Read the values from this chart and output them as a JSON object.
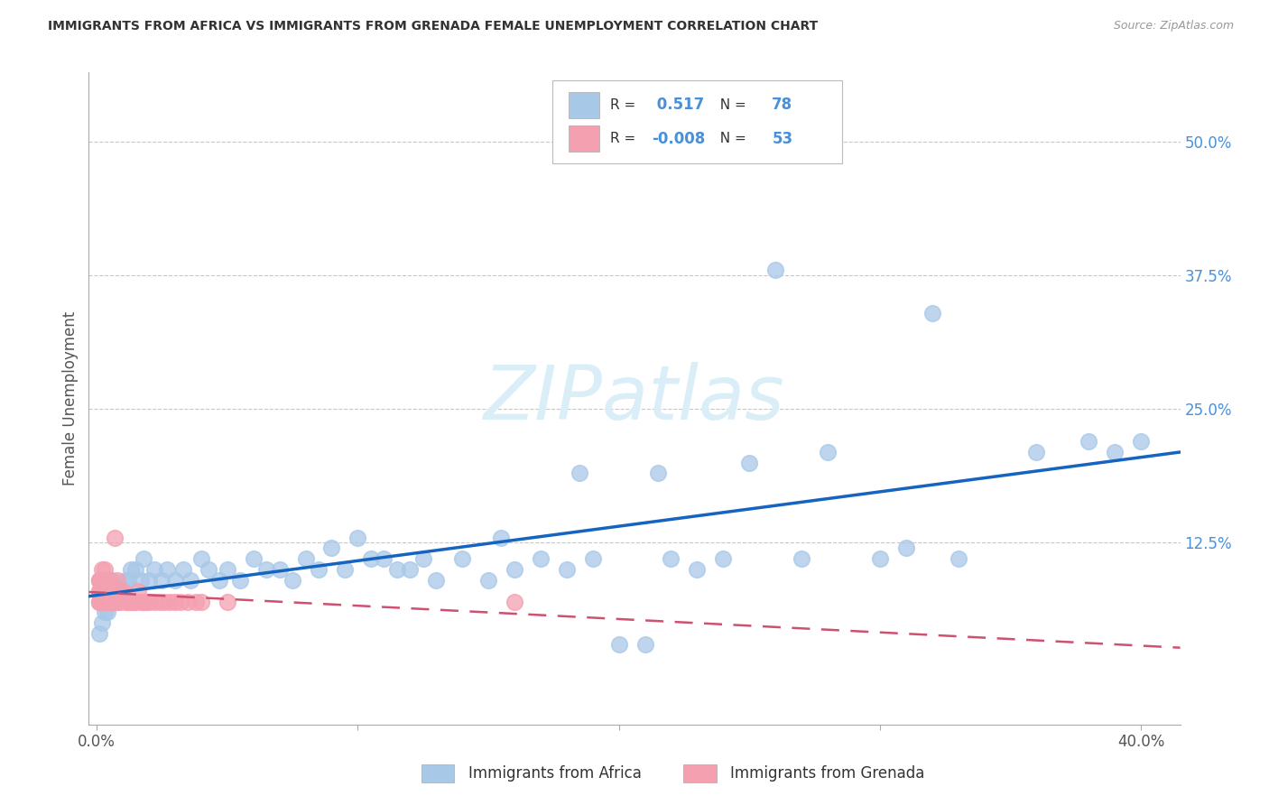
{
  "title": "IMMIGRANTS FROM AFRICA VS IMMIGRANTS FROM GRENADA FEMALE UNEMPLOYMENT CORRELATION CHART",
  "source": "Source: ZipAtlas.com",
  "ylabel": "Female Unemployment",
  "xlim": [
    -0.003,
    0.415
  ],
  "ylim": [
    -0.045,
    0.565
  ],
  "xtick_vals": [
    0.0,
    0.1,
    0.2,
    0.3,
    0.4
  ],
  "xtick_labels": [
    "0.0%",
    "",
    "",
    "",
    "40.0%"
  ],
  "ytick_vals_right": [
    0.5,
    0.375,
    0.25,
    0.125
  ],
  "ytick_labels_right": [
    "50.0%",
    "37.5%",
    "25.0%",
    "12.5%"
  ],
  "africa_R": 0.517,
  "africa_N": 78,
  "grenada_R": -0.008,
  "grenada_N": 53,
  "africa_dot_color": "#a8c8e8",
  "africa_line_color": "#1565c0",
  "grenada_dot_color": "#f4a0b0",
  "grenada_line_color": "#d05070",
  "watermark_color": "#dceefa",
  "grid_color": "#c8c8c8",
  "title_color": "#333333",
  "axis_label_color": "#4a90d9",
  "africa_x": [
    0.001,
    0.001,
    0.001,
    0.002,
    0.002,
    0.002,
    0.003,
    0.003,
    0.003,
    0.004,
    0.004,
    0.005,
    0.005,
    0.006,
    0.006,
    0.007,
    0.008,
    0.009,
    0.01,
    0.011,
    0.012,
    0.013,
    0.015,
    0.017,
    0.018,
    0.02,
    0.022,
    0.025,
    0.027,
    0.03,
    0.033,
    0.036,
    0.04,
    0.043,
    0.047,
    0.05,
    0.055,
    0.06,
    0.065,
    0.07,
    0.075,
    0.08,
    0.085,
    0.09,
    0.095,
    0.1,
    0.105,
    0.11,
    0.115,
    0.12,
    0.125,
    0.13,
    0.14,
    0.15,
    0.155,
    0.16,
    0.17,
    0.18,
    0.185,
    0.19,
    0.2,
    0.21,
    0.215,
    0.22,
    0.23,
    0.24,
    0.25,
    0.26,
    0.27,
    0.28,
    0.3,
    0.31,
    0.32,
    0.33,
    0.36,
    0.38,
    0.39,
    0.4
  ],
  "africa_y": [
    0.04,
    0.07,
    0.09,
    0.05,
    0.07,
    0.09,
    0.06,
    0.08,
    0.08,
    0.06,
    0.09,
    0.07,
    0.09,
    0.07,
    0.09,
    0.08,
    0.07,
    0.08,
    0.08,
    0.09,
    0.09,
    0.1,
    0.1,
    0.09,
    0.11,
    0.09,
    0.1,
    0.09,
    0.1,
    0.09,
    0.1,
    0.09,
    0.11,
    0.1,
    0.09,
    0.1,
    0.09,
    0.11,
    0.1,
    0.1,
    0.09,
    0.11,
    0.1,
    0.12,
    0.1,
    0.13,
    0.11,
    0.11,
    0.1,
    0.1,
    0.11,
    0.09,
    0.11,
    0.09,
    0.13,
    0.1,
    0.11,
    0.1,
    0.19,
    0.11,
    0.03,
    0.03,
    0.19,
    0.11,
    0.1,
    0.11,
    0.2,
    0.38,
    0.11,
    0.21,
    0.11,
    0.12,
    0.34,
    0.11,
    0.21,
    0.22,
    0.21,
    0.22
  ],
  "grenada_x": [
    0.001,
    0.001,
    0.001,
    0.001,
    0.001,
    0.001,
    0.001,
    0.002,
    0.002,
    0.002,
    0.002,
    0.002,
    0.003,
    0.003,
    0.003,
    0.003,
    0.003,
    0.004,
    0.004,
    0.004,
    0.005,
    0.005,
    0.005,
    0.006,
    0.006,
    0.007,
    0.007,
    0.008,
    0.008,
    0.009,
    0.009,
    0.01,
    0.011,
    0.012,
    0.013,
    0.014,
    0.015,
    0.016,
    0.017,
    0.018,
    0.019,
    0.02,
    0.022,
    0.024,
    0.026,
    0.028,
    0.03,
    0.032,
    0.035,
    0.038,
    0.04,
    0.05,
    0.16
  ],
  "grenada_y": [
    0.07,
    0.07,
    0.07,
    0.08,
    0.08,
    0.09,
    0.09,
    0.07,
    0.07,
    0.08,
    0.09,
    0.1,
    0.07,
    0.07,
    0.08,
    0.09,
    0.1,
    0.07,
    0.08,
    0.09,
    0.07,
    0.08,
    0.09,
    0.07,
    0.08,
    0.07,
    0.13,
    0.07,
    0.09,
    0.07,
    0.08,
    0.08,
    0.07,
    0.07,
    0.07,
    0.07,
    0.07,
    0.08,
    0.07,
    0.07,
    0.07,
    0.07,
    0.07,
    0.07,
    0.07,
    0.07,
    0.07,
    0.07,
    0.07,
    0.07,
    0.07,
    0.07,
    0.07
  ],
  "bottom_legend_items": [
    "Immigrants from Africa",
    "Immigrants from Grenada"
  ]
}
